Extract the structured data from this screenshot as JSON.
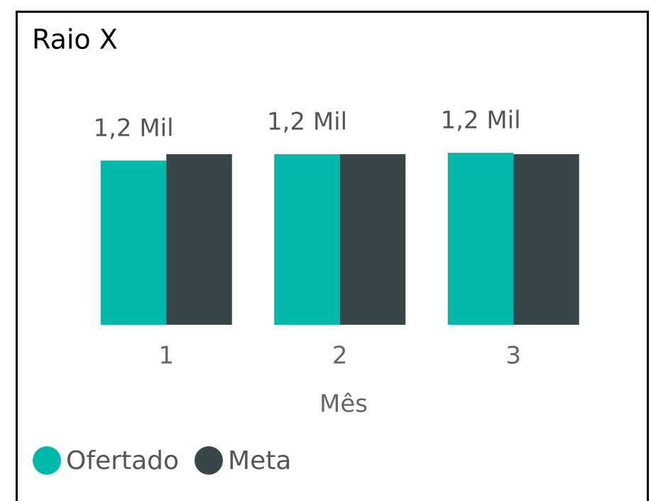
{
  "chart_data": {
    "type": "bar",
    "title": "Raio X",
    "categories": [
      "1",
      "2",
      "3"
    ],
    "x_label": "Mês",
    "series": [
      {
        "name": "Ofertado",
        "color": "#01b8aa",
        "values": [
          1155,
          1200,
          1210
        ],
        "value_labels": [
          "1,2 Mil",
          "1,2 Mil",
          "1,2 Mil"
        ]
      },
      {
        "name": "Meta",
        "color": "#374649",
        "values": [
          1200,
          1200,
          1200
        ]
      }
    ],
    "ylim": [
      0,
      1200
    ]
  }
}
